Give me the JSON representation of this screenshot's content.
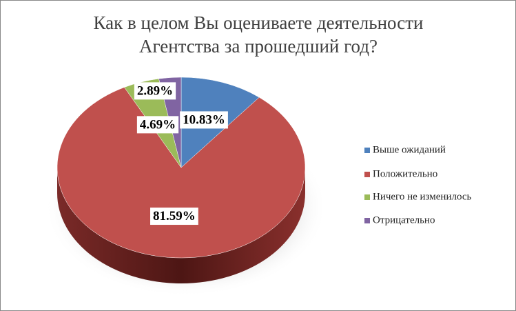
{
  "chart_data": {
    "type": "pie",
    "title": "Как в целом Вы оцениваете деятельности Агентства за прошедший год?",
    "categories": [
      "Выше ожиданий",
      "Положительно",
      "Ничего не изменилось",
      "Отрицательно"
    ],
    "values": [
      10.83,
      81.59,
      4.69,
      2.89
    ],
    "value_labels": [
      "10.83%",
      "81.59%",
      "4.69%",
      "2.89%"
    ],
    "colors": [
      "#4f81bd",
      "#c0504d",
      "#9bbb59",
      "#8064a2"
    ],
    "legend": "right"
  }
}
